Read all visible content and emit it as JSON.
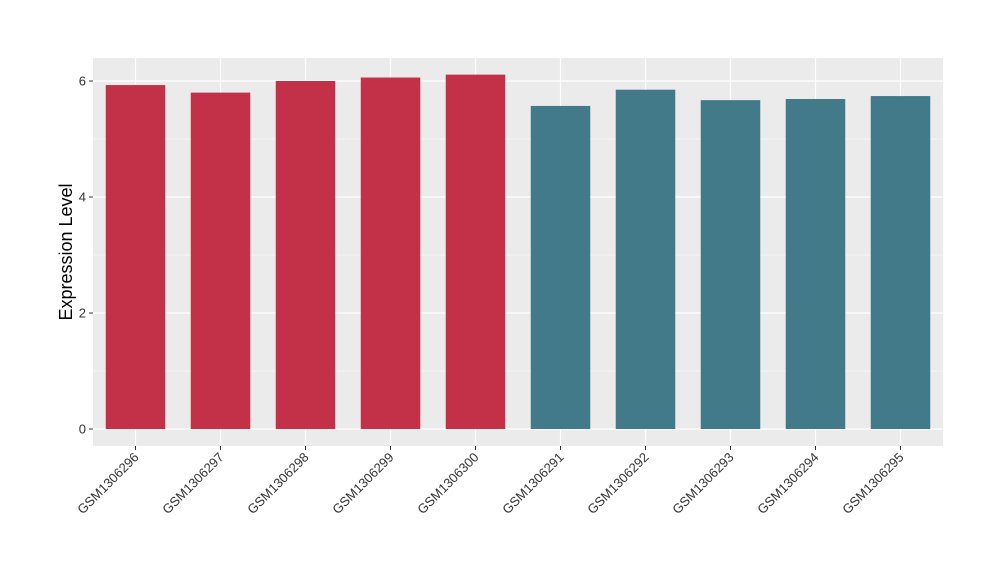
{
  "chart_data": {
    "type": "bar",
    "title": "",
    "xlabel": "",
    "ylabel": "Expression Level",
    "ylim": [
      0,
      6.3
    ],
    "yticks": [
      0,
      2,
      4,
      6
    ],
    "grid": true,
    "legend": "none",
    "colors": {
      "group1": "#C33148",
      "group2": "#427A8A",
      "panel": "#EBEBEB",
      "gridline": "#FFFFFF"
    },
    "categories": [
      "GSM1306296",
      "GSM1306297",
      "GSM1306298",
      "GSM1306299",
      "GSM1306300",
      "GSM1306291",
      "GSM1306292",
      "GSM1306293",
      "GSM1306294",
      "GSM1306295"
    ],
    "values": [
      5.93,
      5.8,
      6.0,
      6.06,
      6.11,
      5.57,
      5.85,
      5.67,
      5.69,
      5.74
    ],
    "bar_groups": [
      "group1",
      "group1",
      "group1",
      "group1",
      "group1",
      "group2",
      "group2",
      "group2",
      "group2",
      "group2"
    ]
  }
}
